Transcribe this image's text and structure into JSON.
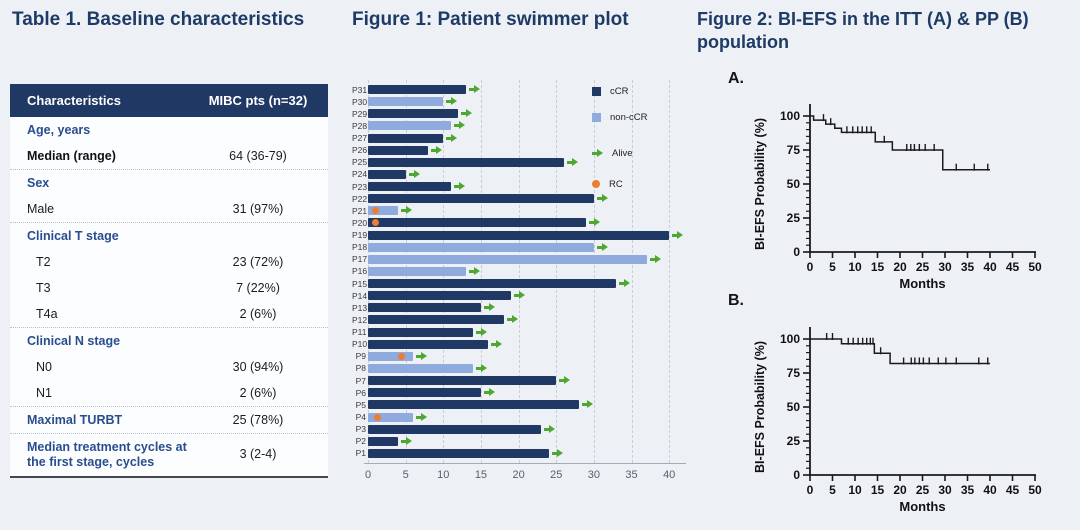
{
  "page": {
    "background": "#edf1f6",
    "title_color": "#1e3a66"
  },
  "table1": {
    "title": "Table 1. Baseline characteristics",
    "columns": [
      "Characteristics",
      "MIBC pts (n=32)"
    ],
    "rows": [
      {
        "label": "Age, years",
        "value": "",
        "style": "section",
        "divider": false,
        "tall": false
      },
      {
        "label": "Median (range)",
        "value": "64 (36-79)",
        "style": "bold",
        "divider": true,
        "tall": false
      },
      {
        "label": "Sex",
        "value": "",
        "style": "section",
        "divider": false,
        "tall": false
      },
      {
        "label": "Male",
        "value": "31 (97%)",
        "style": "plain",
        "divider": true,
        "tall": false
      },
      {
        "label": "Clinical T stage",
        "value": "",
        "style": "section",
        "divider": false,
        "tall": false
      },
      {
        "label": "T2",
        "value": "23 (72%)",
        "style": "indent",
        "divider": false,
        "tall": false
      },
      {
        "label": "T3",
        "value": "7 (22%)",
        "style": "indent",
        "divider": false,
        "tall": false
      },
      {
        "label": "T4a",
        "value": "2 (6%)",
        "style": "indent",
        "divider": true,
        "tall": false
      },
      {
        "label": "Clinical N stage",
        "value": "",
        "style": "section",
        "divider": false,
        "tall": false
      },
      {
        "label": "N0",
        "value": "30 (94%)",
        "style": "indent",
        "divider": false,
        "tall": false
      },
      {
        "label": "N1",
        "value": "2 (6%)",
        "style": "indent",
        "divider": true,
        "tall": false
      },
      {
        "label": "Maximal TURBT",
        "value": "25 (78%)",
        "style": "section",
        "divider": true,
        "tall": false
      },
      {
        "label": "Median treatment cycles at the first stage, cycles",
        "value": "3 (2-4)",
        "style": "section",
        "divider": false,
        "tall": true
      }
    ]
  },
  "figure1": {
    "title": "Figure 1: Patient swimmer plot",
    "legend": [
      {
        "label": "cCR",
        "color": "#1f3864",
        "marker": "square"
      },
      {
        "label": "non-cCR",
        "color": "#8faadc",
        "marker": "square"
      },
      {
        "label": "Alive",
        "color": "#4ea72e",
        "marker": "arrow"
      },
      {
        "label": "RC",
        "color": "#ed7d31",
        "marker": "circle"
      }
    ]
  },
  "figure2": {
    "title": "Figure 2: BI-EFS in the ITT (A) & PP (B) population",
    "panel_a_label": "A.",
    "panel_b_label": "B."
  },
  "chart_data": [
    {
      "id": "swimmer",
      "type": "bar",
      "orientation": "horizontal",
      "title": "Figure 1: Patient swimmer plot",
      "xlabel": "",
      "ylabel": "",
      "xlim": [
        0,
        42
      ],
      "xticks": [
        0,
        5,
        10,
        15,
        20,
        25,
        30,
        35,
        40
      ],
      "grid": "dashed-vertical",
      "legend_entries": [
        "cCR",
        "non-cCR",
        "Alive",
        "RC"
      ],
      "bar_colors": {
        "cCR": "#1f3864",
        "non-cCR": "#8faadc"
      },
      "marker_colors": {
        "alive_arrow": "#4ea72e",
        "rc_dot": "#ed7d31"
      },
      "patients": [
        {
          "id": "P31",
          "months": 13,
          "response": "cCR",
          "alive": true,
          "rc": null
        },
        {
          "id": "P30",
          "months": 10,
          "response": "non-cCR",
          "alive": true,
          "rc": null
        },
        {
          "id": "P29",
          "months": 12,
          "response": "cCR",
          "alive": true,
          "rc": null
        },
        {
          "id": "P28",
          "months": 11,
          "response": "non-cCR",
          "alive": true,
          "rc": null
        },
        {
          "id": "P27",
          "months": 10,
          "response": "cCR",
          "alive": true,
          "rc": null
        },
        {
          "id": "P26",
          "months": 8,
          "response": "cCR",
          "alive": true,
          "rc": null
        },
        {
          "id": "P25",
          "months": 26,
          "response": "cCR",
          "alive": true,
          "rc": null
        },
        {
          "id": "P24",
          "months": 5,
          "response": "cCR",
          "alive": true,
          "rc": null
        },
        {
          "id": "P23",
          "months": 11,
          "response": "cCR",
          "alive": true,
          "rc": null
        },
        {
          "id": "P22",
          "months": 30,
          "response": "cCR",
          "alive": true,
          "rc": null
        },
        {
          "id": "P21",
          "months": 4,
          "response": "non-cCR",
          "alive": true,
          "rc": 1
        },
        {
          "id": "P20",
          "months": 29,
          "response": "cCR",
          "alive": true,
          "rc": 1
        },
        {
          "id": "P19",
          "months": 40,
          "response": "cCR",
          "alive": true,
          "rc": null
        },
        {
          "id": "P18",
          "months": 30,
          "response": "non-cCR",
          "alive": true,
          "rc": null
        },
        {
          "id": "P17",
          "months": 37,
          "response": "non-cCR",
          "alive": true,
          "rc": null
        },
        {
          "id": "P16",
          "months": 13,
          "response": "non-cCR",
          "alive": true,
          "rc": null
        },
        {
          "id": "P15",
          "months": 33,
          "response": "cCR",
          "alive": true,
          "rc": null
        },
        {
          "id": "P14",
          "months": 19,
          "response": "cCR",
          "alive": true,
          "rc": null
        },
        {
          "id": "P13",
          "months": 15,
          "response": "cCR",
          "alive": true,
          "rc": null
        },
        {
          "id": "P12",
          "months": 18,
          "response": "cCR",
          "alive": true,
          "rc": null
        },
        {
          "id": "P11",
          "months": 14,
          "response": "cCR",
          "alive": true,
          "rc": null
        },
        {
          "id": "P10",
          "months": 16,
          "response": "cCR",
          "alive": true,
          "rc": null
        },
        {
          "id": "P9",
          "months": 6,
          "response": "non-cCR",
          "alive": true,
          "rc": 4.5
        },
        {
          "id": "P8",
          "months": 14,
          "response": "non-cCR",
          "alive": true,
          "rc": null
        },
        {
          "id": "P7",
          "months": 25,
          "response": "cCR",
          "alive": true,
          "rc": null
        },
        {
          "id": "P6",
          "months": 15,
          "response": "cCR",
          "alive": true,
          "rc": null
        },
        {
          "id": "P5",
          "months": 28,
          "response": "cCR",
          "alive": true,
          "rc": null
        },
        {
          "id": "P4",
          "months": 6,
          "response": "non-cCR",
          "alive": true,
          "rc": 1.2
        },
        {
          "id": "P3",
          "months": 23,
          "response": "cCR",
          "alive": true,
          "rc": null
        },
        {
          "id": "P2",
          "months": 4,
          "response": "cCR",
          "alive": true,
          "rc": null
        },
        {
          "id": "P1",
          "months": 24,
          "response": "cCR",
          "alive": true,
          "rc": null
        }
      ]
    },
    {
      "id": "km_itt",
      "type": "line",
      "panel": "A",
      "population": "ITT",
      "xlabel": "Months",
      "ylabel": "BI-EFS Probability (%)",
      "xlim": [
        0,
        50
      ],
      "ylim": [
        0,
        100
      ],
      "xticks": [
        0,
        5,
        10,
        15,
        20,
        25,
        30,
        35,
        40,
        45,
        50
      ],
      "yticks": [
        0,
        25,
        50,
        75,
        100
      ],
      "y_minor_step": 5,
      "steps": [
        [
          0,
          100
        ],
        [
          0.8,
          97
        ],
        [
          3.5,
          94
        ],
        [
          5.5,
          91
        ],
        [
          7,
          88
        ],
        [
          14.5,
          81
        ],
        [
          18.3,
          75
        ],
        [
          29.5,
          60.5
        ]
      ],
      "end_x": 40,
      "censor_ticks": [
        3.0,
        4.6,
        8.2,
        9.5,
        10.6,
        11.6,
        12.6,
        13.6,
        16.5,
        21.5,
        22.4,
        23.2,
        24.3,
        25.6,
        27.6,
        32.5,
        36.5,
        39.5
      ]
    },
    {
      "id": "km_pp",
      "type": "line",
      "panel": "B",
      "population": "PP",
      "xlabel": "Months",
      "ylabel": "BI-EFS Probability (%)",
      "xlim": [
        0,
        50
      ],
      "ylim": [
        0,
        100
      ],
      "xticks": [
        0,
        5,
        10,
        15,
        20,
        25,
        30,
        35,
        40,
        45,
        50
      ],
      "yticks": [
        0,
        25,
        50,
        75,
        100
      ],
      "y_minor_step": 5,
      "steps": [
        [
          0,
          100
        ],
        [
          7,
          96.5
        ],
        [
          14.3,
          89.5
        ],
        [
          17.8,
          82
        ]
      ],
      "end_x": 40,
      "censor_ticks": [
        3.7,
        5.0,
        8.5,
        9.6,
        10.7,
        11.7,
        12.6,
        13.4,
        14.0,
        15.7,
        20.8,
        22.5,
        23.3,
        24.3,
        25.2,
        26.5,
        28.5,
        30.2,
        32.5,
        37.5,
        39.5
      ]
    }
  ]
}
